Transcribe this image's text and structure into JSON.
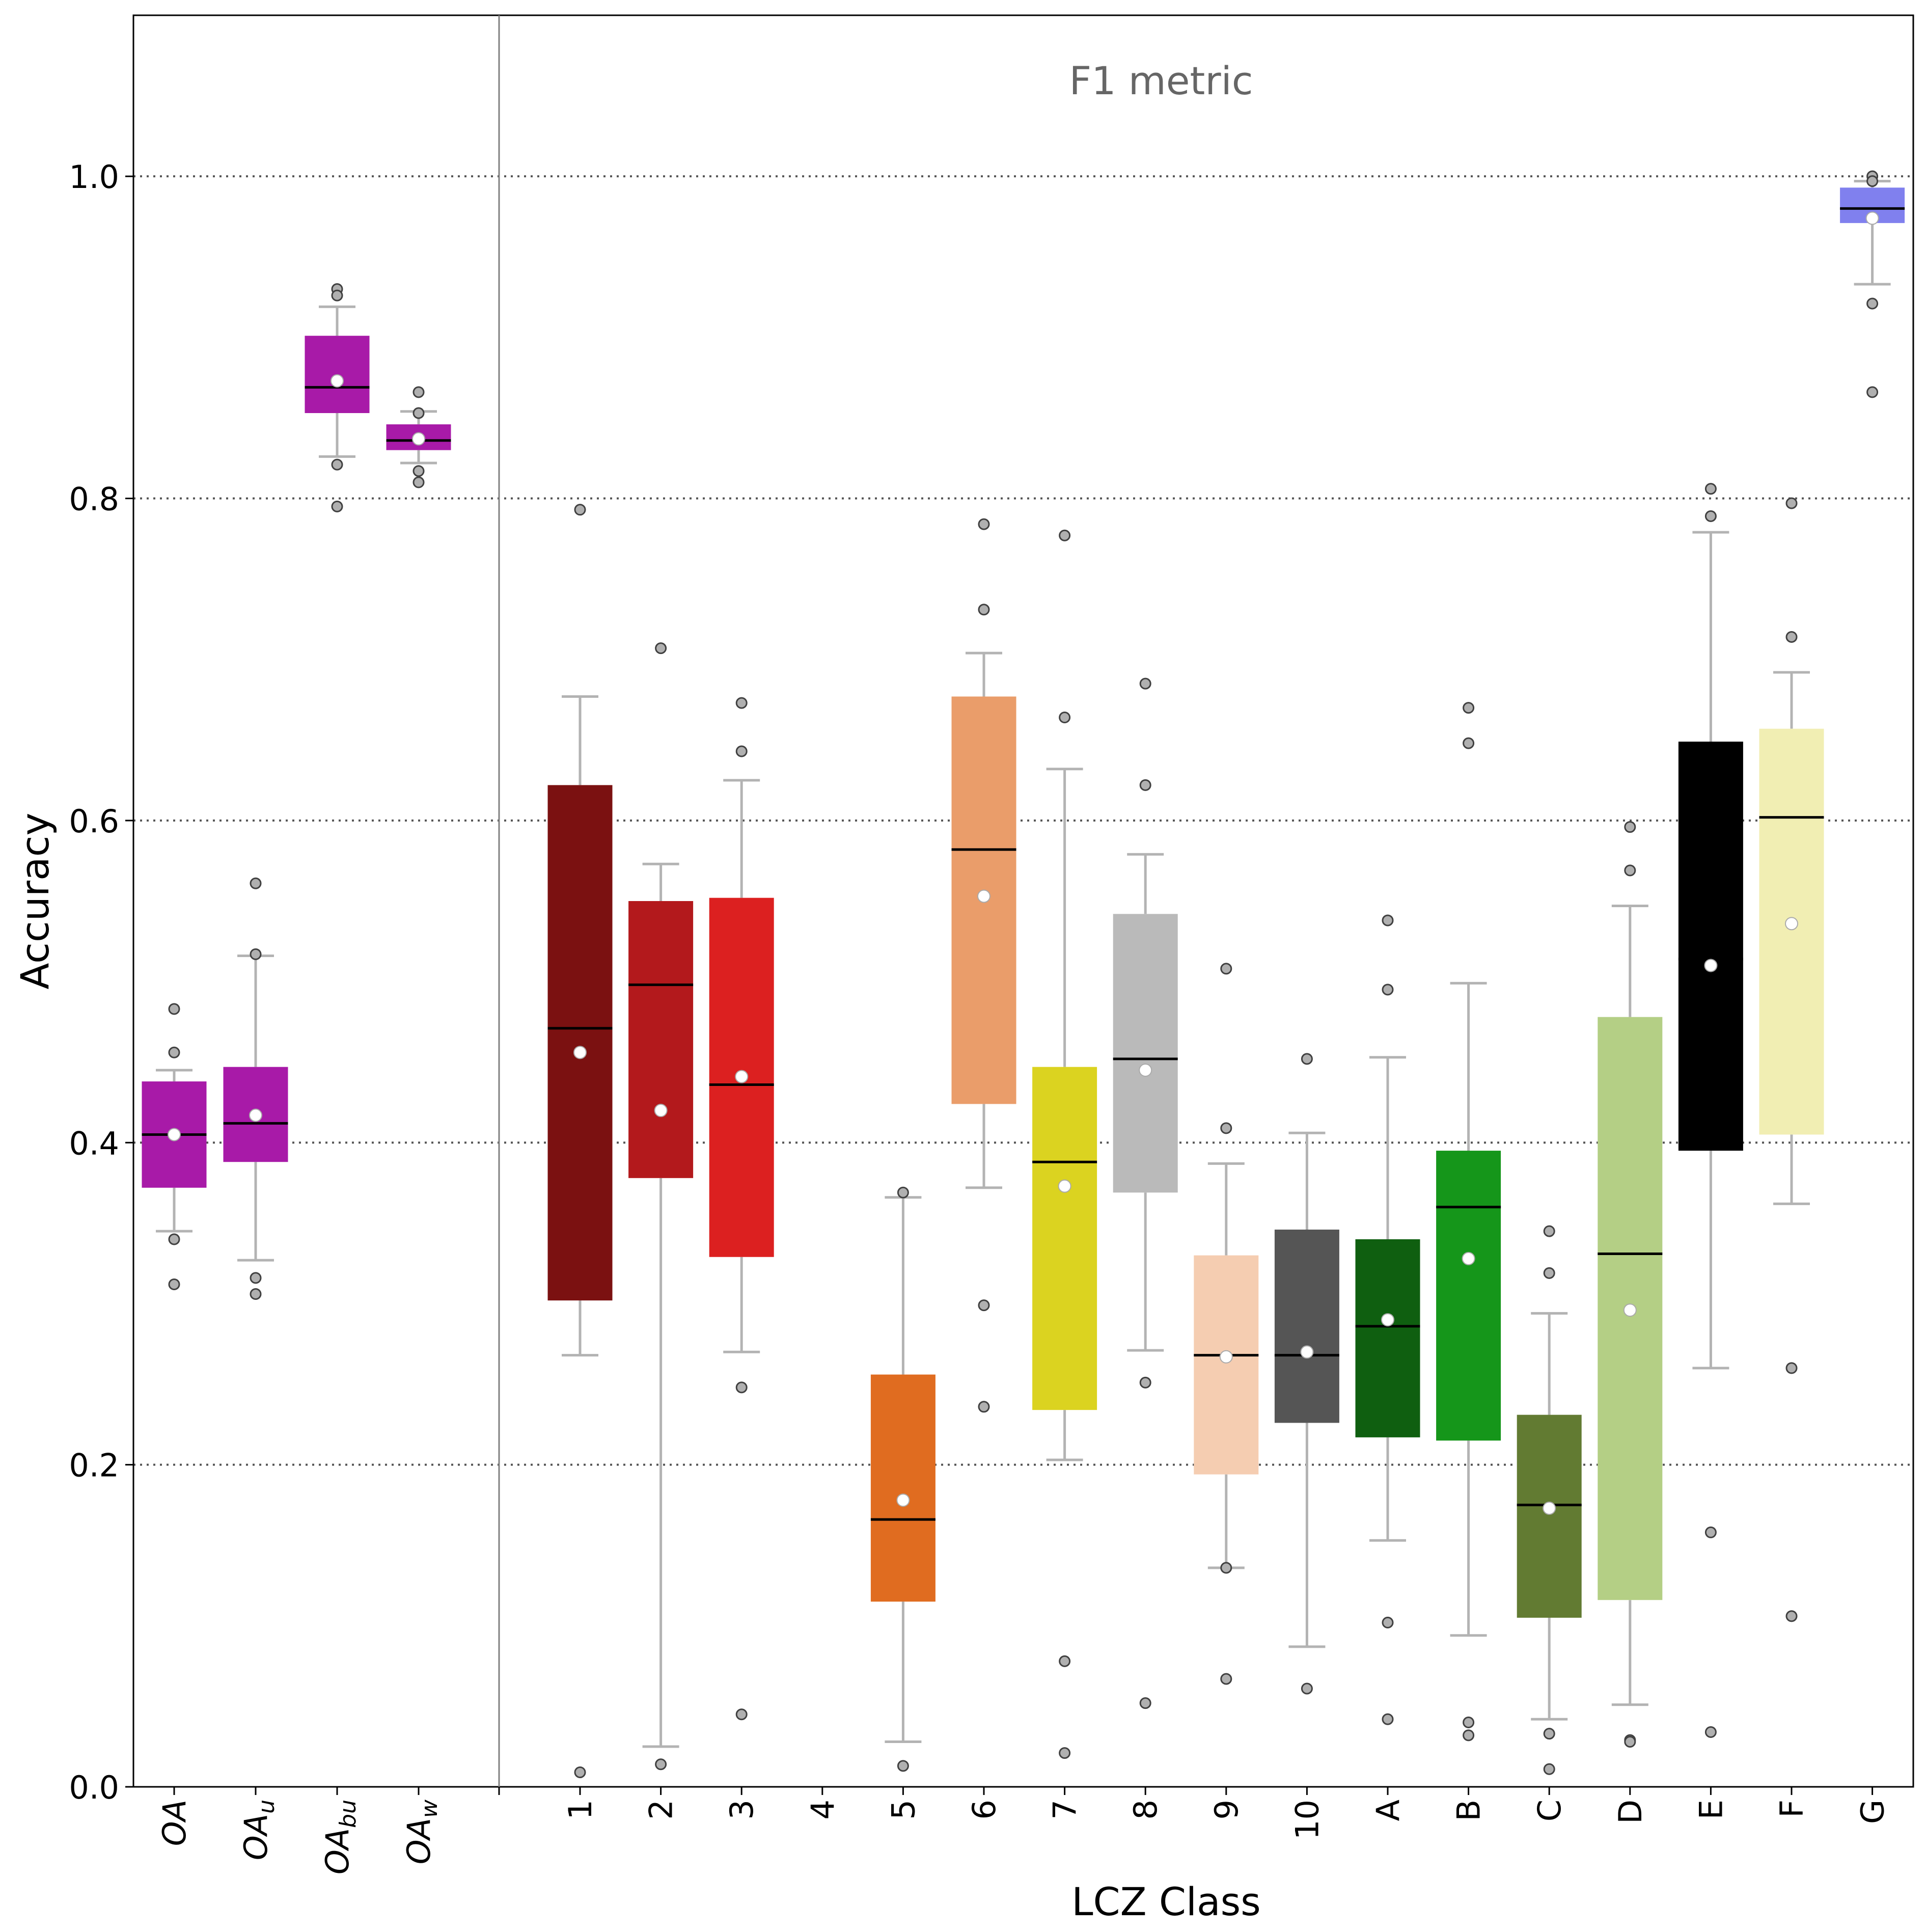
{
  "chart_data": {
    "type": "box",
    "title": "F1 metric",
    "xlabel": "LCZ Class",
    "ylabel": "Accuracy",
    "ylim": [
      0.0,
      1.1
    ],
    "y_ticks": [
      "0.0",
      "0.2",
      "0.4",
      "0.6",
      "0.8",
      "1.0"
    ],
    "y_tick_values": [
      0.0,
      0.2,
      0.4,
      0.6,
      0.8,
      1.0
    ],
    "grid": "horizontal dotted at y ticks",
    "groups": [
      {
        "id": "overall",
        "boxes": [
          {
            "base": "OA",
            "sub": "",
            "color": "#a81aa8",
            "q1": 0.372,
            "median": 0.405,
            "q3": 0.438,
            "whisker_low": 0.345,
            "whisker_high": 0.445,
            "mean": 0.405,
            "outliers": [
              0.483,
              0.456,
              0.34,
              0.312
            ]
          },
          {
            "base": "OA",
            "sub": "u",
            "color": "#a81aa8",
            "q1": 0.388,
            "median": 0.412,
            "q3": 0.447,
            "whisker_low": 0.327,
            "whisker_high": 0.516,
            "mean": 0.417,
            "outliers": [
              0.561,
              0.517,
              0.316,
              0.306
            ]
          },
          {
            "base": "OA",
            "sub": "bu",
            "color": "#a81aa8",
            "q1": 0.853,
            "median": 0.869,
            "q3": 0.901,
            "whisker_low": 0.826,
            "whisker_high": 0.919,
            "mean": 0.873,
            "outliers": [
              0.93,
              0.926,
              0.821,
              0.795
            ]
          },
          {
            "base": "OA",
            "sub": "w",
            "color": "#a81aa8",
            "q1": 0.83,
            "median": 0.836,
            "q3": 0.846,
            "whisker_low": 0.822,
            "whisker_high": 0.854,
            "mean": 0.837,
            "outliers": [
              0.866,
              0.853,
              0.817,
              0.81
            ]
          }
        ]
      },
      {
        "id": "lcz",
        "boxes": [
          {
            "label": "1",
            "color": "#7b1111",
            "q1": 0.302,
            "median": 0.471,
            "q3": 0.622,
            "whisker_low": 0.268,
            "whisker_high": 0.677,
            "mean": 0.456,
            "outliers": [
              0.793,
              0.009
            ]
          },
          {
            "label": "2",
            "color": "#b3191c",
            "q1": 0.378,
            "median": 0.498,
            "q3": 0.55,
            "whisker_low": 0.025,
            "whisker_high": 0.573,
            "mean": 0.42,
            "outliers": [
              0.707,
              0.014
            ]
          },
          {
            "label": "3",
            "color": "#dc2020",
            "q1": 0.329,
            "median": 0.436,
            "q3": 0.552,
            "whisker_low": 0.27,
            "whisker_high": 0.625,
            "mean": 0.441,
            "outliers": [
              0.673,
              0.643,
              0.248,
              0.045
            ]
          },
          {
            "label": "4"
          },
          {
            "label": "5",
            "color": "#e06c20",
            "q1": 0.115,
            "median": 0.166,
            "q3": 0.256,
            "whisker_low": 0.028,
            "whisker_high": 0.366,
            "mean": 0.178,
            "outliers": [
              0.369,
              0.013
            ]
          },
          {
            "label": "6",
            "color": "#ea9d6a",
            "q1": 0.424,
            "median": 0.582,
            "q3": 0.677,
            "whisker_low": 0.372,
            "whisker_high": 0.704,
            "mean": 0.553,
            "outliers": [
              0.784,
              0.731,
              0.299,
              0.236
            ]
          },
          {
            "label": "7",
            "color": "#dbd320",
            "q1": 0.234,
            "median": 0.388,
            "q3": 0.447,
            "whisker_low": 0.203,
            "whisker_high": 0.632,
            "mean": 0.373,
            "outliers": [
              0.777,
              0.664,
              0.078,
              0.021
            ]
          },
          {
            "label": "8",
            "color": "#bababa",
            "q1": 0.369,
            "median": 0.452,
            "q3": 0.542,
            "whisker_low": 0.271,
            "whisker_high": 0.579,
            "mean": 0.445,
            "outliers": [
              0.685,
              0.622,
              0.251,
              0.052
            ]
          },
          {
            "label": "9",
            "color": "#f5cdb1",
            "q1": 0.194,
            "median": 0.268,
            "q3": 0.33,
            "whisker_low": 0.136,
            "whisker_high": 0.387,
            "mean": 0.267,
            "outliers": [
              0.508,
              0.409,
              0.136,
              0.067
            ]
          },
          {
            "label": "10",
            "color": "#555555",
            "q1": 0.226,
            "median": 0.268,
            "q3": 0.346,
            "whisker_low": 0.087,
            "whisker_high": 0.406,
            "mean": 0.27,
            "outliers": [
              0.452,
              0.061
            ]
          },
          {
            "label": "A",
            "color": "#0f5f10",
            "q1": 0.217,
            "median": 0.286,
            "q3": 0.34,
            "whisker_low": 0.153,
            "whisker_high": 0.453,
            "mean": 0.29,
            "outliers": [
              0.538,
              0.495,
              0.102,
              0.042
            ]
          },
          {
            "label": "B",
            "color": "#15961a",
            "q1": 0.215,
            "median": 0.36,
            "q3": 0.395,
            "whisker_low": 0.094,
            "whisker_high": 0.499,
            "mean": 0.328,
            "outliers": [
              0.67,
              0.648,
              0.04,
              0.032
            ]
          },
          {
            "label": "C",
            "color": "#627b32",
            "q1": 0.105,
            "median": 0.175,
            "q3": 0.231,
            "whisker_low": 0.042,
            "whisker_high": 0.294,
            "mean": 0.173,
            "outliers": [
              0.345,
              0.319,
              0.033,
              0.011
            ]
          },
          {
            "label": "D",
            "color": "#b4cf85",
            "q1": 0.116,
            "median": 0.331,
            "q3": 0.478,
            "whisker_low": 0.051,
            "whisker_high": 0.547,
            "mean": 0.296,
            "outliers": [
              0.596,
              0.569,
              0.029,
              0.028
            ]
          },
          {
            "label": "E",
            "color": "#000000",
            "q1": 0.395,
            "median": 0.514,
            "q3": 0.649,
            "whisker_low": 0.26,
            "whisker_high": 0.779,
            "mean": 0.51,
            "outliers": [
              0.806,
              0.789,
              0.158,
              0.034
            ]
          },
          {
            "label": "F",
            "color": "#f1eeb3",
            "q1": 0.405,
            "median": 0.602,
            "q3": 0.657,
            "whisker_low": 0.362,
            "whisker_high": 0.692,
            "mean": 0.536,
            "outliers": [
              0.797,
              0.714,
              0.26,
              0.106
            ]
          },
          {
            "label": "G",
            "color": "#8080ee",
            "q1": 0.971,
            "median": 0.98,
            "q3": 0.993,
            "whisker_low": 0.933,
            "whisker_high": 0.997,
            "mean": 0.974,
            "outliers": [
              1.0,
              0.997,
              0.921,
              0.866
            ]
          }
        ]
      }
    ]
  }
}
